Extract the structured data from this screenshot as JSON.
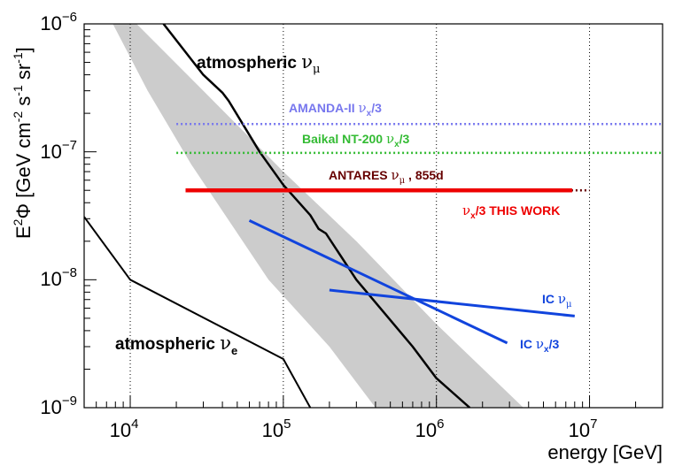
{
  "chart_data": {
    "type": "line",
    "x_scale": "log",
    "y_scale": "log",
    "xlim": [
      5000,
      30000000
    ],
    "ylim": [
      1e-09,
      1e-06
    ],
    "xlabel": "energy [GeV]",
    "ylabel_parts": {
      "prefix": "E",
      "sup1": "2",
      "mid": "Φ [GeV cm",
      "sup2": "-2",
      "mid2": " s",
      "sup3": "-1",
      "mid3": " sr",
      "sup4": "-1",
      "suffix": "]"
    },
    "x_ticks": [
      {
        "value": 10000,
        "base": "10",
        "exp": "4"
      },
      {
        "value": 100000,
        "base": "10",
        "exp": "5"
      },
      {
        "value": 1000000,
        "base": "10",
        "exp": "6"
      },
      {
        "value": 10000000,
        "base": "10",
        "exp": "7"
      }
    ],
    "y_ticks": [
      {
        "value": 1e-09,
        "base": "10",
        "exp": "−9"
      },
      {
        "value": 1e-08,
        "base": "10",
        "exp": "−8"
      },
      {
        "value": 1e-07,
        "base": "10",
        "exp": "−7"
      },
      {
        "value": 1e-06,
        "base": "10",
        "exp": "−6"
      }
    ],
    "grid_x": [
      10000,
      100000,
      1000000,
      10000000
    ],
    "band": {
      "name": "atmospheric numu band",
      "color": "#cccccc",
      "upper": [
        [
          11000,
          1e-06
        ],
        [
          30000,
          3e-07
        ],
        [
          100000,
          7e-08
        ],
        [
          300000,
          2e-08
        ],
        [
          1000000,
          4.5e-09
        ],
        [
          3700000,
          1e-09
        ]
      ],
      "lower": [
        [
          3700000,
          1e-09
        ],
        [
          400000,
          1e-09
        ],
        [
          200000,
          3e-09
        ],
        [
          80000,
          1e-08
        ],
        [
          25000,
          8e-08
        ],
        [
          13000,
          3e-07
        ],
        [
          7700,
          1e-06
        ]
      ]
    },
    "series": [
      {
        "name": "atmospheric numu",
        "color": "#000000",
        "width": 2.5,
        "points": [
          [
            16500,
            1e-06
          ],
          [
            30000,
            4e-07
          ],
          [
            40000,
            2.9e-07
          ],
          [
            44000,
            2.5e-07
          ],
          [
            70000,
            1e-07
          ],
          [
            100000,
            5.5e-08
          ],
          [
            150000,
            3.2e-08
          ],
          [
            170000,
            2.5e-08
          ],
          [
            190000,
            2.3e-08
          ],
          [
            300000,
            1e-08
          ],
          [
            700000,
            3e-09
          ],
          [
            1000000,
            1.7e-09
          ],
          [
            1650000,
            1e-09
          ]
        ]
      },
      {
        "name": "atmospheric nue",
        "color": "#000000",
        "width": 2,
        "points": [
          [
            5000,
            3.1e-08
          ],
          [
            10000,
            1e-08
          ],
          [
            100000,
            2.4e-09
          ],
          [
            150000,
            1e-09
          ]
        ]
      },
      {
        "name": "AMANDA-II",
        "color": "#7777ee",
        "width": 2.5,
        "dash": "2,3",
        "points": [
          [
            20000,
            1.65e-07
          ],
          [
            30000000,
            1.65e-07
          ]
        ]
      },
      {
        "name": "Baikal NT-200",
        "color": "#33bb33",
        "width": 2.5,
        "dash": "2,3",
        "points": [
          [
            20000,
            9.8e-08
          ],
          [
            30000000,
            9.8e-08
          ]
        ]
      },
      {
        "name": "ANTARES 855d",
        "color": "#660000",
        "width": 2.5,
        "dash": "2,3",
        "points": [
          [
            45000,
            5e-08
          ],
          [
            10000000,
            5e-08
          ]
        ]
      },
      {
        "name": "This work",
        "color": "#ee0000",
        "width": 4.5,
        "points": [
          [
            23000,
            5e-08
          ],
          [
            7700000,
            5e-08
          ]
        ]
      },
      {
        "name": "IC nux/3",
        "color": "#1144dd",
        "width": 3,
        "points": [
          [
            60000,
            2.9e-08
          ],
          [
            2900000,
            3.2e-09
          ]
        ]
      },
      {
        "name": "IC numu",
        "color": "#1144dd",
        "width": 3,
        "points": [
          [
            200000,
            8.3e-09
          ],
          [
            8000000,
            5.2e-09
          ]
        ]
      }
    ]
  },
  "annotations": {
    "atm_numu_prefix": "atmospheric ",
    "atm_numu_nu": "ν",
    "atm_numu_sub": "μ",
    "atm_nue_prefix": "atmospheric ",
    "atm_nue_nu": "ν",
    "atm_nue_sub": "e",
    "amanda_prefix": "AMANDA-II  ",
    "amanda_nu": "ν",
    "amanda_sub": "x",
    "amanda_suffix": "/3",
    "baikal_prefix": "Baikal NT-200  ",
    "baikal_nu": "ν",
    "baikal_sub": "x",
    "baikal_suffix": "/3",
    "antares_prefix": "ANTARES  ",
    "antares_nu": "ν",
    "antares_sub": "μ",
    "antares_suffix": " , 855d",
    "thiswork_nu": "ν",
    "thiswork_sub": "x",
    "thiswork_suffix": "/3 THIS WORK",
    "ic_numu_prefix": "IC  ",
    "ic_numu_nu": "ν",
    "ic_numu_sub": "μ",
    "ic_nux_prefix": "IC  ",
    "ic_nux_nu": "ν",
    "ic_nux_sub": "x",
    "ic_nux_suffix": "/3"
  },
  "colors": {
    "amanda": "#7777ee",
    "baikal": "#33bb33",
    "antares": "#660000",
    "thiswork": "#ee0000",
    "icecube": "#1144dd",
    "band": "#cccccc"
  }
}
